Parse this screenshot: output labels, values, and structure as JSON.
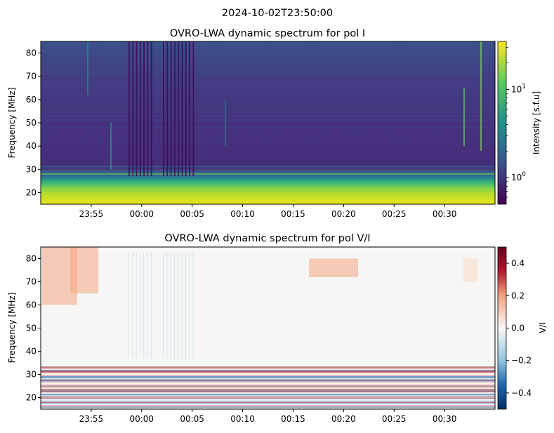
{
  "suptitle": "2024-10-02T23:50:00",
  "chart_data": [
    {
      "type": "heatmap",
      "title": "OVRO-LWA dynamic spectrum for pol I",
      "ylabel": "Frequency [MHz]",
      "xlabel": "",
      "time_range": [
        "2024-10-02T23:50:00",
        "2024-10-03T00:35:00"
      ],
      "x_ticks": [
        "23:55",
        "00:00",
        "00:05",
        "00:10",
        "00:15",
        "00:20",
        "00:25",
        "00:30"
      ],
      "y_ticks": [
        20,
        30,
        40,
        50,
        60,
        70,
        80
      ],
      "ylim": [
        15,
        85
      ],
      "colormap": "viridis",
      "color_scale": "log",
      "colorbar_label": "Intensity [s.f.u]",
      "colorbar_ticks": [
        "10^0",
        "10^1"
      ],
      "colorbar_range": [
        0.5,
        35
      ],
      "colors": {
        "low": "#440154",
        "mid": "#21918c",
        "high": "#fde725"
      }
    },
    {
      "type": "heatmap",
      "title": "OVRO-LWA dynamic spectrum for pol V/I",
      "ylabel": "Frequency [MHz]",
      "xlabel": "",
      "time_range": [
        "2024-10-02T23:50:00",
        "2024-10-03T00:35:00"
      ],
      "x_ticks": [
        "23:55",
        "00:00",
        "00:05",
        "00:10",
        "00:15",
        "00:20",
        "00:25",
        "00:30"
      ],
      "y_ticks": [
        20,
        30,
        40,
        50,
        60,
        70,
        80
      ],
      "ylim": [
        15,
        85
      ],
      "colormap": "RdBu_r",
      "color_scale": "linear",
      "colorbar_label": "V/I",
      "colorbar_ticks": [
        "0.4",
        "0.2",
        "0.0",
        "−0.2",
        "−0.4"
      ],
      "colorbar_range": [
        -0.5,
        0.5
      ],
      "colors": {
        "low": "#053061",
        "mid": "#f7f7f7",
        "high": "#67001f"
      }
    }
  ]
}
